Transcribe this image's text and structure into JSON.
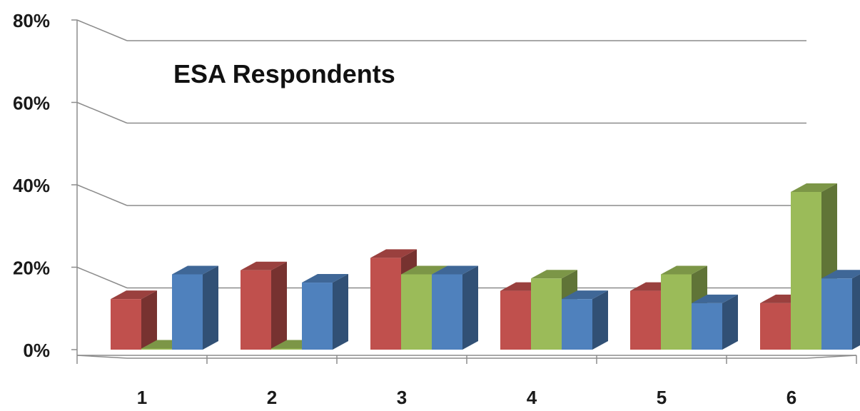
{
  "chart_data": {
    "type": "bar",
    "title": "ESA Respondents",
    "categories": [
      "1",
      "2",
      "3",
      "4",
      "5",
      "6"
    ],
    "series": [
      {
        "values": [
          14,
          21,
          24,
          16,
          16,
          13
        ],
        "color": "#c0504d"
      },
      {
        "values": [
          2,
          2,
          20,
          19,
          20,
          40
        ],
        "color": "#9bbb59"
      },
      {
        "values": [
          20,
          18,
          20,
          14,
          13,
          19
        ],
        "color": "#4f81bd"
      }
    ],
    "ylim": [
      0,
      80
    ],
    "y_ticks": [
      "0%",
      "20%",
      "40%",
      "60%",
      "80%"
    ],
    "grid": true,
    "style": "3d-clustered"
  }
}
